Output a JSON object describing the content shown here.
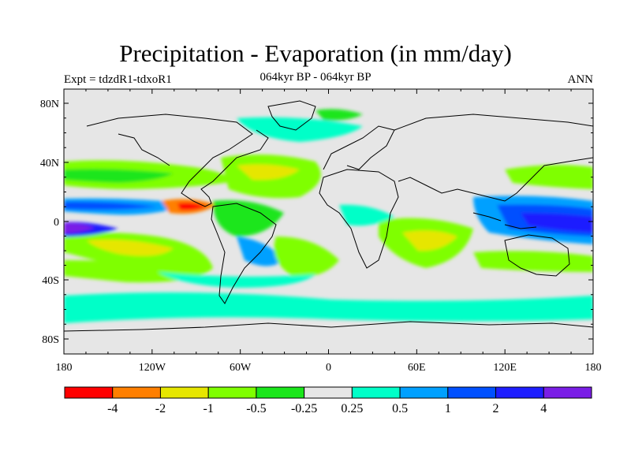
{
  "header": {
    "title": "Precipitation - Evaporation (in mm/day)",
    "subtitle": "064kyr BP - 064kyr BP",
    "experiment": "Expt = tdzdR1-tdxoR1",
    "season": "ANN"
  },
  "axes": {
    "x_ticks": [
      "180",
      "120W",
      "60W",
      "0",
      "60E",
      "120E",
      "180"
    ],
    "y_ticks": [
      "80N",
      "40N",
      "0",
      "40S",
      "80S"
    ]
  },
  "colorbar": {
    "colors": [
      "#ff0000",
      "#ff7f00",
      "#e6e600",
      "#7fff00",
      "#1ae61a",
      "#e6e6e6",
      "#00ffc8",
      "#00a0ff",
      "#0050ff",
      "#1e1eff",
      "#7a1ee6"
    ],
    "labels": [
      "-4",
      "-2",
      "-1",
      "-0.5",
      "-0.25",
      "0.25",
      "0.5",
      "1",
      "2",
      "4"
    ]
  },
  "map_legend_colors": {
    "ocean_background": "#e6e6e6",
    "coastline": "#000000"
  }
}
